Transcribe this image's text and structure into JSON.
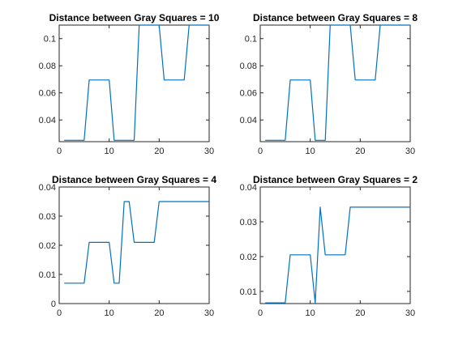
{
  "chart_data": [
    {
      "type": "line",
      "title": "Distance between Gray Squares = 10",
      "xlim": [
        0,
        30
      ],
      "ylim": [
        0.024,
        0.11
      ],
      "xticks": [
        0,
        10,
        20,
        30
      ],
      "yticks": [
        0.04,
        0.06,
        0.08,
        0.1
      ],
      "ytick_labels": [
        "0.04",
        "0.06",
        "0.08",
        "0.1"
      ],
      "series": [
        {
          "color": "#0072bd",
          "x": [
            1,
            5,
            6,
            10,
            11,
            15,
            16,
            20,
            21,
            25,
            26,
            30
          ],
          "y": [
            0.025,
            0.025,
            0.0695,
            0.0695,
            0.025,
            0.025,
            0.11,
            0.11,
            0.0695,
            0.0695,
            0.11,
            0.11
          ]
        }
      ]
    },
    {
      "type": "line",
      "title": "Distance between Gray Squares = 8",
      "xlim": [
        0,
        30
      ],
      "ylim": [
        0.024,
        0.11
      ],
      "xticks": [
        0,
        10,
        20,
        30
      ],
      "yticks": [
        0.04,
        0.06,
        0.08,
        0.1
      ],
      "ytick_labels": [
        "0.04",
        "0.06",
        "0.08",
        "0.1"
      ],
      "series": [
        {
          "color": "#0072bd",
          "x": [
            1,
            5,
            6,
            10,
            11,
            13,
            14,
            18,
            19,
            23,
            24,
            30
          ],
          "y": [
            0.025,
            0.025,
            0.0695,
            0.0695,
            0.025,
            0.025,
            0.11,
            0.11,
            0.0695,
            0.0695,
            0.11,
            0.11
          ]
        }
      ]
    },
    {
      "type": "line",
      "title": "Distance between Gray Squares = 4",
      "xlim": [
        0,
        30
      ],
      "ylim": [
        0,
        0.04
      ],
      "xticks": [
        0,
        10,
        20,
        30
      ],
      "yticks": [
        0,
        0.01,
        0.02,
        0.03,
        0.04
      ],
      "ytick_labels": [
        "0",
        "0.01",
        "0.02",
        "0.03",
        "0.04"
      ],
      "series": [
        {
          "color": "#0072bd",
          "x": [
            1,
            5,
            6,
            10,
            11,
            12,
            13,
            14,
            15,
            19,
            20,
            30
          ],
          "y": [
            0.007,
            0.007,
            0.021,
            0.021,
            0.007,
            0.007,
            0.035,
            0.035,
            0.021,
            0.021,
            0.035,
            0.035
          ]
        }
      ]
    },
    {
      "type": "line",
      "title": "Distance between Gray Squares = 2",
      "xlim": [
        0,
        30
      ],
      "ylim": [
        0.0065,
        0.04
      ],
      "xticks": [
        0,
        10,
        20,
        30
      ],
      "yticks": [
        0.01,
        0.02,
        0.03,
        0.04
      ],
      "ytick_labels": [
        "0.01",
        "0.02",
        "0.03",
        "0.04"
      ],
      "series": [
        {
          "color": "#0072bd",
          "x": [
            1,
            5,
            6,
            10,
            11,
            12,
            13,
            17,
            18,
            30
          ],
          "y": [
            0.0067,
            0.0067,
            0.0205,
            0.0205,
            0.0067,
            0.0342,
            0.0205,
            0.0205,
            0.0342,
            0.0342
          ]
        }
      ]
    }
  ]
}
